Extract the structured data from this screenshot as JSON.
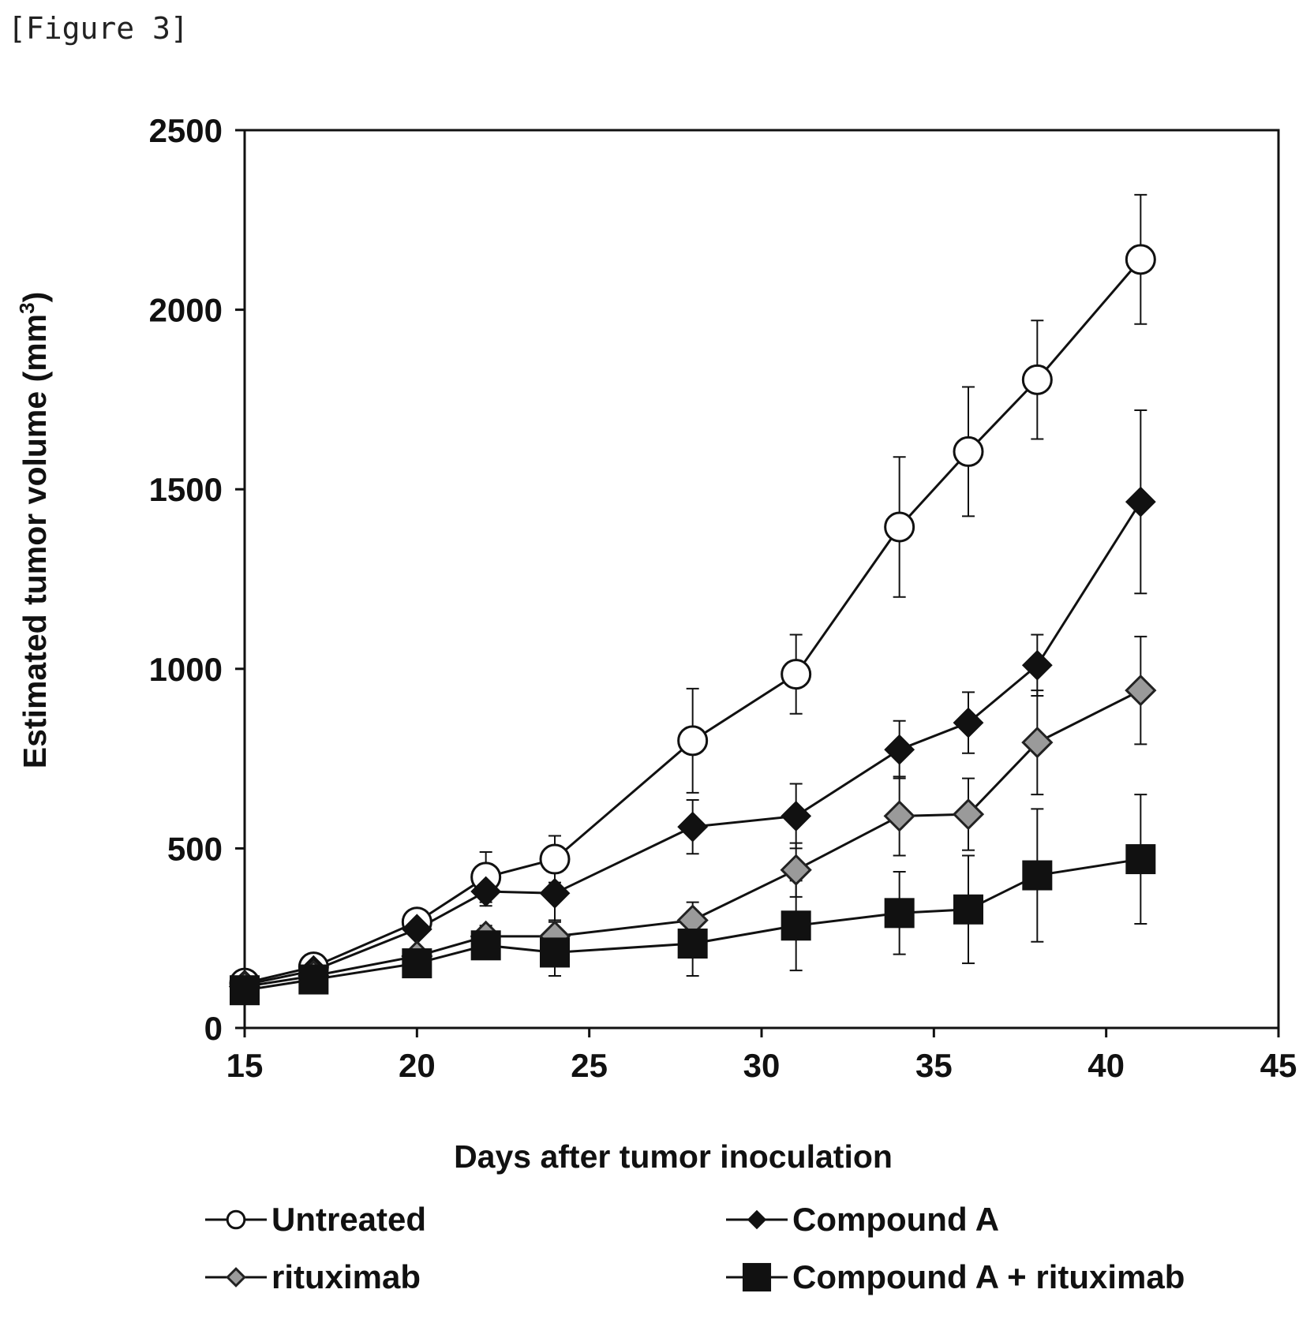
{
  "figure_label": "[Figure 3]",
  "chart_data": {
    "type": "line",
    "xlabel": "Days after tumor inoculation",
    "ylabel": "Estimated tumor volume (mm",
    "ylabel_superscript": "3",
    "ylabel_suffix": ")",
    "xlim": [
      15,
      45
    ],
    "ylim": [
      0,
      2500
    ],
    "xticks": [
      "15",
      "20",
      "25",
      "30",
      "35",
      "40",
      "45"
    ],
    "yticks": [
      "0",
      "500",
      "1000",
      "1500",
      "2000",
      "2500"
    ],
    "grid": false,
    "legend_position": "bottom",
    "series": [
      {
        "name": "Untreated",
        "marker": "open-circle",
        "x": [
          15,
          17,
          20,
          22,
          24,
          28,
          31,
          34,
          36,
          38,
          41
        ],
        "y": [
          125,
          170,
          295,
          420,
          470,
          800,
          985,
          1395,
          1605,
          1805,
          2140
        ],
        "err": [
          10,
          15,
          20,
          70,
          65,
          145,
          110,
          195,
          180,
          165,
          180
        ]
      },
      {
        "name": "Compound A",
        "marker": "filled-diamond",
        "x": [
          15,
          17,
          20,
          22,
          24,
          28,
          31,
          34,
          36,
          38,
          41
        ],
        "y": [
          120,
          160,
          275,
          380,
          375,
          560,
          590,
          775,
          850,
          1010,
          1465
        ],
        "err": [
          10,
          15,
          20,
          40,
          80,
          75,
          90,
          80,
          85,
          85,
          255
        ]
      },
      {
        "name": "rituximab",
        "marker": "gray-diamond",
        "x": [
          15,
          17,
          20,
          22,
          24,
          28,
          31,
          34,
          36,
          38,
          41
        ],
        "y": [
          115,
          145,
          200,
          255,
          255,
          300,
          440,
          590,
          595,
          795,
          940
        ],
        "err": [
          10,
          10,
          15,
          30,
          45,
          50,
          75,
          110,
          100,
          145,
          150
        ]
      },
      {
        "name": "Compound A + rituximab",
        "marker": "filled-square",
        "x": [
          15,
          17,
          20,
          22,
          24,
          28,
          31,
          34,
          36,
          38,
          41
        ],
        "y": [
          105,
          135,
          180,
          230,
          210,
          235,
          285,
          320,
          330,
          425,
          470
        ],
        "err": [
          10,
          10,
          15,
          25,
          65,
          90,
          125,
          115,
          150,
          185,
          180
        ]
      }
    ]
  }
}
